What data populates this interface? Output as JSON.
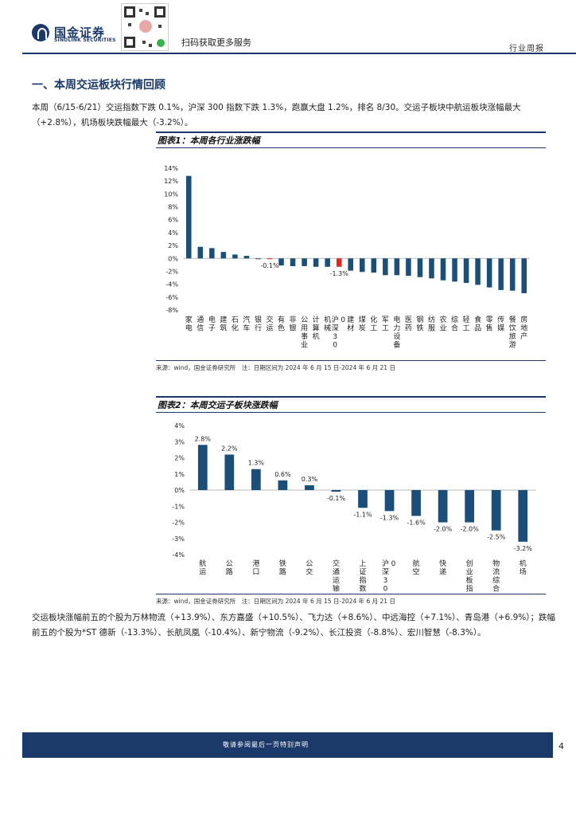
{
  "header": {
    "logo_cn": "国金证券",
    "logo_en": "SINOLINK SECURITIES",
    "scan_text": "扫码获取更多服务",
    "report_type": "行业周报"
  },
  "section": {
    "title": "一、本周交运板块行情回顾"
  },
  "paragraph1": "本周（6/15-6/21）交运指数下跌 0.1%，沪深 300 指数下跌 1.3%，跑赢大盘 1.2%，排名 8/30。交运子板块中航运板块涨幅最大（+2.8%），机场板块跌幅最大（-3.2%）。",
  "paragraph2": "交运板块涨幅前五的个股为万林物流（+13.9%）、东方嘉盛（+10.5%）、飞力达（+8.6%）、中远海控（+7.1%）、青岛港（+6.9%）；跌幅前五的个股为*ST 德新（-13.3%）、长航凤凰（-10.4%）、新宁物流（-9.2%）、长江投资（-8.8%）、宏川智慧（-8.3%）。",
  "figure1": {
    "title": "图表1：本周各行业涨跌幅",
    "source": "来源：wind，国金证券研究所　注：日期区间为 2024 年 6 月 15 日-2024 年 6 月 21 日"
  },
  "figure2": {
    "title": "图表2：本周交运子板块涨跌幅",
    "source": "来源：wind，国金证券研究所　注：日期区间为 2024 年 6 月 15 日-2024 年 6 月 21 日"
  },
  "chart_data": [
    {
      "type": "bar",
      "title": "本周各行业涨跌幅",
      "categories": [
        "家电",
        "通信",
        "电子",
        "建筑",
        "石化",
        "汽车",
        "银行",
        "交运",
        "有色",
        "非银",
        "公用事业",
        "计算机",
        "机械",
        "沪深300",
        "建材",
        "煤炭",
        "化工",
        "军工",
        "电力设备",
        "医药",
        "钢铁",
        "纺服",
        "农业",
        "综合",
        "轻工",
        "食品",
        "零售",
        "传媒",
        "餐饮旅游",
        "房地产"
      ],
      "values": [
        12.8,
        1.8,
        1.6,
        1.0,
        0.6,
        0.4,
        -0.1,
        -0.1,
        -1.1,
        -1.2,
        -1.2,
        -1.3,
        -1.3,
        -1.3,
        -1.9,
        -2.1,
        -2.2,
        -2.6,
        -2.6,
        -2.7,
        -2.9,
        -3.1,
        -3.4,
        -3.6,
        -3.8,
        -4.1,
        -4.5,
        -4.9,
        -5.0,
        -5.4
      ],
      "highlight": {
        "交运": "#e8231e",
        "沪深300": "#e8231e"
      },
      "data_labels": {
        "交运": "-0.1%",
        "沪深300": "-1.3%"
      },
      "ylim": [
        -8,
        14
      ],
      "yticks": [
        "14%",
        "12%",
        "10%",
        "8%",
        "6%",
        "4%",
        "2%",
        "0%",
        "-2%",
        "-4%",
        "-6%",
        "-8%"
      ],
      "series_color": "#1b4f7a"
    },
    {
      "type": "bar",
      "title": "本周交运子板块涨跌幅",
      "categories": [
        "航运",
        "公路",
        "港口",
        "铁路",
        "公交",
        "交通运输",
        "上证指数",
        "沪深300",
        "航空",
        "快递",
        "创业板指",
        "物流综合",
        "机场"
      ],
      "values": [
        2.8,
        2.2,
        1.3,
        0.6,
        0.3,
        -0.1,
        -1.1,
        -1.3,
        -1.6,
        -2.0,
        -2.0,
        -2.5,
        -3.2
      ],
      "labels": [
        "2.8%",
        "2.2%",
        "1.3%",
        "0.6%",
        "0.3%",
        "-0.1%",
        "-1.1%",
        "-1.3%",
        "-1.6%",
        "-2.0%",
        "-2.0%",
        "-2.5%",
        "-3.2%"
      ],
      "ylim": [
        -4,
        4
      ],
      "yticks": [
        "4%",
        "3%",
        "2%",
        "1%",
        "0%",
        "-1%",
        "-2%",
        "-3%",
        "-4%"
      ],
      "series_color": "#1b4f7a"
    }
  ],
  "footer": {
    "disclaimer": "敬请参阅最后一页特别声明",
    "page": "4"
  }
}
